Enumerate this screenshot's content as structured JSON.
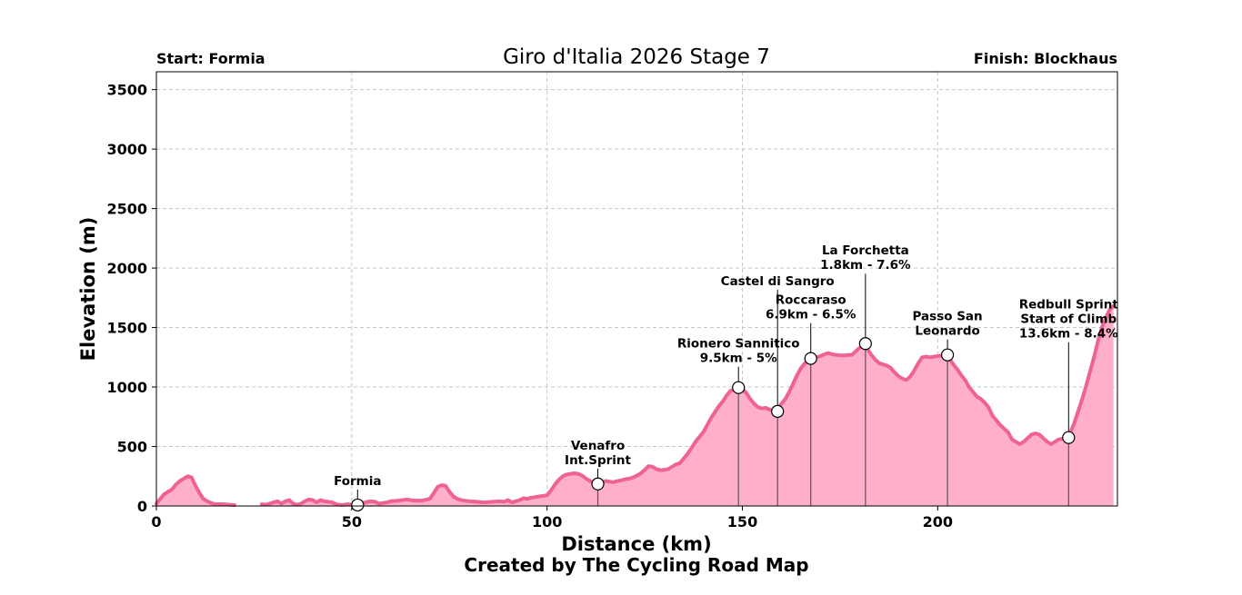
{
  "chart_data": {
    "type": "area",
    "title": "Giro d'Italia 2026 Stage 7",
    "start_label": "Start: Formia",
    "finish_label": "Finish: Blockhaus",
    "xlabel": "Distance (km)",
    "ylabel": "Elevation (m)",
    "credit": "Created by The Cycling Road Map",
    "xlim": [
      0,
      246
    ],
    "ylim": [
      0,
      3650
    ],
    "xticks": [
      0,
      50,
      100,
      150,
      200
    ],
    "yticks": [
      0,
      500,
      1000,
      1500,
      2000,
      2500,
      3000,
      3500
    ],
    "grid": true,
    "colors": {
      "line": "#f06292",
      "fill": "#ffafc8",
      "marker_edge": "#000000"
    },
    "profile": [
      [
        0,
        20
      ],
      [
        1,
        60
      ],
      [
        2,
        100
      ],
      [
        3,
        120
      ],
      [
        4,
        140
      ],
      [
        5,
        180
      ],
      [
        6,
        210
      ],
      [
        7,
        230
      ],
      [
        8,
        250
      ],
      [
        9,
        240
      ],
      [
        10,
        170
      ],
      [
        11,
        110
      ],
      [
        12,
        60
      ],
      [
        13,
        40
      ],
      [
        14,
        25
      ],
      [
        15,
        15
      ],
      [
        17,
        15
      ],
      [
        19,
        10
      ],
      [
        20,
        8
      ],
      null,
      [
        27,
        15
      ],
      [
        28,
        10
      ],
      [
        29,
        20
      ],
      [
        30,
        30
      ],
      [
        31,
        40
      ],
      [
        32,
        20
      ],
      [
        33,
        40
      ],
      [
        34,
        50
      ],
      [
        35,
        20
      ],
      [
        36,
        10
      ],
      [
        37,
        20
      ],
      [
        38,
        40
      ],
      [
        39,
        55
      ],
      [
        40,
        50
      ],
      [
        41,
        30
      ],
      [
        42,
        50
      ],
      [
        43,
        40
      ],
      [
        44,
        35
      ],
      [
        45,
        30
      ],
      [
        46,
        15
      ],
      [
        47,
        10
      ],
      [
        48,
        10
      ],
      [
        49,
        15
      ],
      [
        50,
        10
      ],
      [
        51,
        10
      ],
      [
        52,
        15
      ],
      [
        53,
        25
      ],
      [
        54,
        35
      ],
      [
        55,
        40
      ],
      [
        56,
        35
      ],
      [
        57,
        20
      ],
      [
        58,
        25
      ],
      [
        59,
        30
      ],
      [
        60,
        40
      ],
      [
        62,
        45
      ],
      [
        64,
        55
      ],
      [
        66,
        45
      ],
      [
        68,
        45
      ],
      [
        70,
        60
      ],
      [
        71,
        110
      ],
      [
        72,
        160
      ],
      [
        73,
        175
      ],
      [
        74,
        170
      ],
      [
        75,
        120
      ],
      [
        76,
        80
      ],
      [
        77,
        60
      ],
      [
        78,
        50
      ],
      [
        80,
        40
      ],
      [
        82,
        35
      ],
      [
        84,
        30
      ],
      [
        86,
        35
      ],
      [
        88,
        40
      ],
      [
        89,
        35
      ],
      [
        90,
        50
      ],
      [
        91,
        30
      ],
      [
        92,
        40
      ],
      [
        93,
        50
      ],
      [
        94,
        65
      ],
      [
        95,
        60
      ],
      [
        96,
        70
      ],
      [
        97,
        75
      ],
      [
        98,
        80
      ],
      [
        99,
        85
      ],
      [
        100,
        90
      ],
      [
        101,
        130
      ],
      [
        102,
        180
      ],
      [
        103,
        220
      ],
      [
        104,
        250
      ],
      [
        105,
        265
      ],
      [
        106,
        270
      ],
      [
        107,
        275
      ],
      [
        108,
        270
      ],
      [
        109,
        255
      ],
      [
        110,
        230
      ],
      [
        111,
        210
      ],
      [
        112,
        195
      ],
      [
        113,
        190
      ],
      [
        114,
        200
      ],
      [
        115,
        210
      ],
      [
        116,
        205
      ],
      [
        117,
        200
      ],
      [
        118,
        210
      ],
      [
        119,
        215
      ],
      [
        120,
        225
      ],
      [
        121,
        230
      ],
      [
        122,
        240
      ],
      [
        123,
        255
      ],
      [
        124,
        275
      ],
      [
        125,
        305
      ],
      [
        126,
        335
      ],
      [
        127,
        330
      ],
      [
        128,
        310
      ],
      [
        129,
        300
      ],
      [
        130,
        305
      ],
      [
        131,
        310
      ],
      [
        132,
        330
      ],
      [
        133,
        350
      ],
      [
        134,
        360
      ],
      [
        135,
        400
      ],
      [
        136,
        440
      ],
      [
        137,
        490
      ],
      [
        138,
        540
      ],
      [
        139,
        580
      ],
      [
        140,
        620
      ],
      [
        141,
        680
      ],
      [
        142,
        740
      ],
      [
        143,
        790
      ],
      [
        144,
        840
      ],
      [
        145,
        880
      ],
      [
        146,
        930
      ],
      [
        147,
        970
      ],
      [
        148,
        980
      ],
      [
        149,
        990
      ],
      [
        150,
        985
      ],
      [
        151,
        950
      ],
      [
        152,
        900
      ],
      [
        153,
        860
      ],
      [
        154,
        830
      ],
      [
        155,
        820
      ],
      [
        156,
        825
      ],
      [
        157,
        810
      ],
      [
        158,
        800
      ],
      [
        159,
        820
      ],
      [
        160,
        860
      ],
      [
        161,
        900
      ],
      [
        162,
        960
      ],
      [
        163,
        1030
      ],
      [
        164,
        1100
      ],
      [
        165,
        1160
      ],
      [
        166,
        1200
      ],
      [
        167,
        1230
      ],
      [
        168,
        1240
      ],
      [
        169,
        1250
      ],
      [
        170,
        1260
      ],
      [
        171,
        1275
      ],
      [
        172,
        1285
      ],
      [
        173,
        1275
      ],
      [
        174,
        1270
      ],
      [
        175,
        1265
      ],
      [
        176,
        1265
      ],
      [
        177,
        1270
      ],
      [
        178,
        1270
      ],
      [
        179,
        1300
      ],
      [
        180,
        1330
      ],
      [
        181,
        1345
      ],
      [
        182,
        1320
      ],
      [
        183,
        1270
      ],
      [
        184,
        1230
      ],
      [
        185,
        1200
      ],
      [
        186,
        1190
      ],
      [
        187,
        1180
      ],
      [
        188,
        1160
      ],
      [
        189,
        1120
      ],
      [
        190,
        1090
      ],
      [
        191,
        1070
      ],
      [
        192,
        1060
      ],
      [
        193,
        1090
      ],
      [
        194,
        1140
      ],
      [
        195,
        1200
      ],
      [
        196,
        1250
      ],
      [
        197,
        1255
      ],
      [
        198,
        1250
      ],
      [
        199,
        1255
      ],
      [
        200,
        1260
      ],
      [
        201,
        1265
      ],
      [
        202,
        1270
      ],
      [
        203,
        1240
      ],
      [
        204,
        1190
      ],
      [
        205,
        1150
      ],
      [
        206,
        1100
      ],
      [
        207,
        1060
      ],
      [
        208,
        1000
      ],
      [
        209,
        960
      ],
      [
        210,
        920
      ],
      [
        211,
        900
      ],
      [
        212,
        870
      ],
      [
        213,
        830
      ],
      [
        214,
        760
      ],
      [
        215,
        720
      ],
      [
        216,
        680
      ],
      [
        217,
        650
      ],
      [
        218,
        620
      ],
      [
        219,
        560
      ],
      [
        220,
        540
      ],
      [
        221,
        520
      ],
      [
        222,
        540
      ],
      [
        223,
        570
      ],
      [
        224,
        600
      ],
      [
        225,
        610
      ],
      [
        226,
        600
      ],
      [
        227,
        570
      ],
      [
        228,
        540
      ],
      [
        229,
        520
      ],
      [
        230,
        540
      ],
      [
        231,
        560
      ],
      [
        232,
        565
      ],
      [
        233,
        570
      ],
      [
        234,
        620
      ],
      [
        235,
        700
      ],
      [
        236,
        800
      ],
      [
        237,
        900
      ],
      [
        238,
        1010
      ],
      [
        239,
        1130
      ],
      [
        240,
        1250
      ],
      [
        241,
        1380
      ],
      [
        242,
        1500
      ],
      [
        243,
        1580
      ],
      [
        244,
        1650
      ],
      [
        245,
        1680
      ]
    ],
    "waypoints": [
      {
        "name": "Formia",
        "km": 51.5,
        "elevation": 8,
        "label": [
          "Formia"
        ]
      },
      {
        "name": "Venafro Int.Sprint",
        "km": 113,
        "elevation": 185,
        "label": [
          "Venafro",
          "Int.Sprint"
        ]
      },
      {
        "name": "Rionero Sannitico",
        "km": 149,
        "elevation": 995,
        "label": [
          "Rionero Sannitico",
          "9.5km - 5%"
        ]
      },
      {
        "name": "Castel di Sangro",
        "km": 159,
        "elevation": 795,
        "label": [
          "Castel di Sangro"
        ]
      },
      {
        "name": "Roccaraso",
        "km": 167.5,
        "elevation": 1240,
        "label": [
          "Roccaraso",
          "6.9km - 6.5%"
        ]
      },
      {
        "name": "La Forchetta",
        "km": 181.5,
        "elevation": 1365,
        "label": [
          "La Forchetta",
          "1.8km - 7.6%"
        ]
      },
      {
        "name": "Passo San Leonardo",
        "km": 202.5,
        "elevation": 1270,
        "label": [
          "Passo San",
          "Leonardo"
        ]
      },
      {
        "name": "Redbull Sprint Start of Climb",
        "km": 233.5,
        "elevation": 575,
        "label": [
          "Redbull Sprint",
          "Start of Climb",
          "13.6km - 8.4%"
        ]
      }
    ]
  }
}
